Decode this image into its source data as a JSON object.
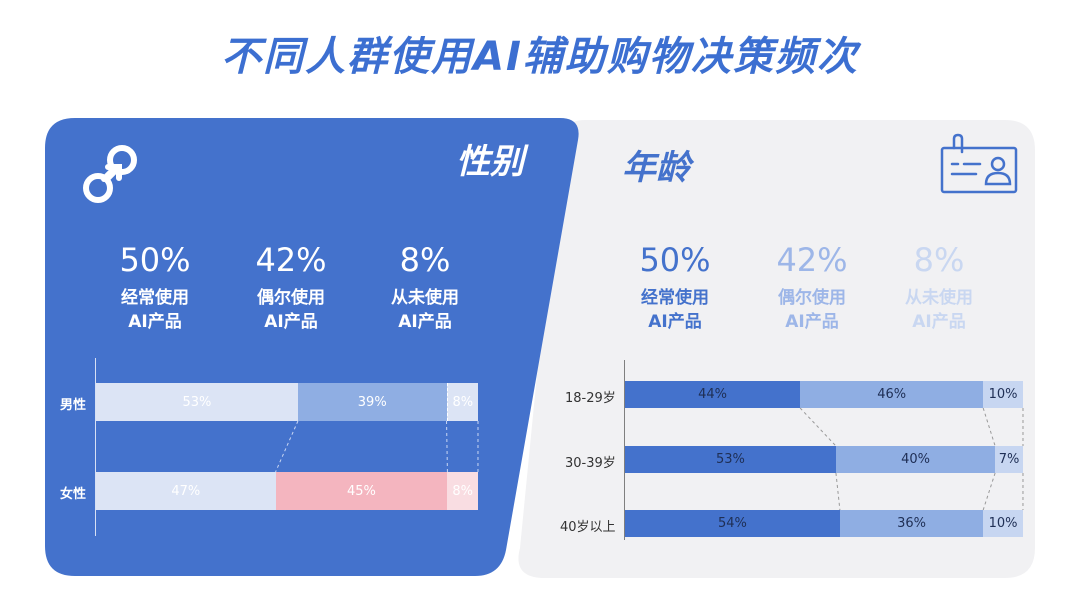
{
  "title": "不同人群使用AI辅助购物决策频次",
  "colors": {
    "accent": "#4472cc",
    "male_often": "#dce4f5",
    "male_sometimes": "#8faee3",
    "male_never": "#dce4f5",
    "female_often": "#dce4f5",
    "female_sometimes": "#f4b5bf",
    "female_never": "#f9dde2",
    "age_often": "#4472cc",
    "age_sometimes": "#8faee3",
    "age_never": "#c7d6f1"
  },
  "icons": {
    "gender": "gender-symbols-icon",
    "age": "id-card-icon"
  },
  "gender": {
    "heading": "性别",
    "stats": [
      {
        "pct": "50%",
        "line1": "经常使用",
        "line2": "AI产品"
      },
      {
        "pct": "42%",
        "line1": "偶尔使用",
        "line2": "AI产品"
      },
      {
        "pct": "8%",
        "line1": "从未使用",
        "line2": "AI产品"
      }
    ]
  },
  "age": {
    "heading": "年龄",
    "stats": [
      {
        "pct": "50%",
        "line1": "经常使用",
        "line2": "AI产品"
      },
      {
        "pct": "42%",
        "line1": "偶尔使用",
        "line2": "AI产品"
      },
      {
        "pct": "8%",
        "line1": "从未使用",
        "line2": "AI产品"
      }
    ]
  },
  "chart_data": [
    {
      "type": "bar",
      "stacked": true,
      "orientation": "horizontal",
      "title": "性别",
      "categories": [
        "男性",
        "女性"
      ],
      "series": [
        {
          "values": [
            53,
            47
          ],
          "labels": [
            "53%",
            "47%"
          ]
        },
        {
          "values": [
            39,
            45
          ],
          "labels": [
            "39%",
            "45%"
          ]
        },
        {
          "values": [
            8,
            8
          ],
          "labels": [
            "8%",
            "8%"
          ]
        }
      ]
    },
    {
      "type": "bar",
      "stacked": true,
      "orientation": "horizontal",
      "title": "年龄",
      "categories": [
        "18-29岁",
        "30-39岁",
        "40岁以上"
      ],
      "series": [
        {
          "values": [
            44,
            53,
            54
          ],
          "labels": [
            "44%",
            "53%",
            "54%"
          ]
        },
        {
          "values": [
            46,
            40,
            36
          ],
          "labels": [
            "46%",
            "40%",
            "36%"
          ]
        },
        {
          "values": [
            10,
            7,
            10
          ],
          "labels": [
            "10%",
            "7%",
            "10%"
          ]
        }
      ]
    }
  ]
}
